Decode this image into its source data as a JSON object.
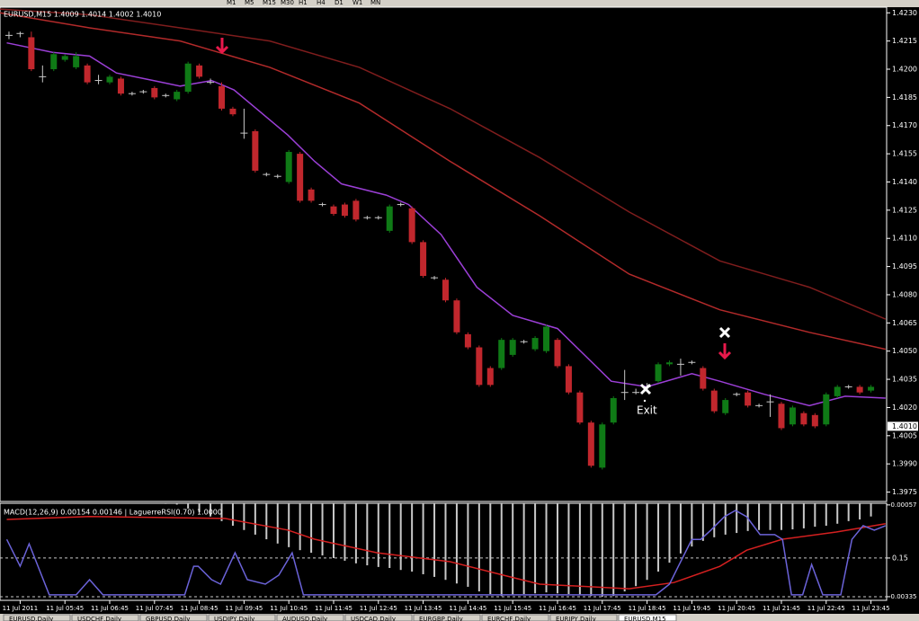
{
  "chart_data": [
    {
      "type": "candlestick",
      "title": "EURUSD,M15  1.4009 1.4014 1.4002 1.4010",
      "categories": [
        null,
        "11 Jul 2011",
        null,
        null,
        null,
        "11 Jul 05:45",
        null,
        null,
        null,
        "11 Jul 06:45",
        null,
        null,
        null,
        "11 Jul 07:45",
        null,
        null,
        null,
        "11 Jul 08:45",
        null,
        null,
        null,
        "11 Jul 09:45",
        null,
        null,
        null,
        "11 Jul 10:45",
        null,
        null,
        null,
        "11 Jul 11:45",
        null,
        null,
        null,
        "11 Jul 12:45",
        null,
        null,
        null,
        "11 Jul 13:45",
        null,
        null,
        null,
        "11 Jul 14:45",
        null,
        null,
        null,
        "11 Jul 15:45",
        null,
        null,
        null,
        "11 Jul 16:45",
        null,
        null,
        null,
        "11 Jul 17:45",
        null,
        null,
        null,
        "11 Jul 18:45",
        null,
        null,
        null,
        "11 Jul 19:45",
        null,
        null,
        null,
        "11 Jul 20:45",
        null,
        null,
        null,
        "11 Jul 21:45",
        null,
        null,
        null,
        "11 Jul 22:45",
        null,
        null,
        null,
        "11 Jul 23:45"
      ],
      "open": [
        1.4218,
        1.4219,
        1.4217,
        1.4196,
        1.42,
        1.4205,
        1.4201,
        1.4202,
        1.4194,
        1.4193,
        1.4195,
        1.4187,
        1.4188,
        1.419,
        1.4186,
        1.4184,
        1.4188,
        1.4202,
        1.4193,
        1.4191,
        1.4179,
        1.4166,
        1.4167,
        1.4144,
        1.4143,
        1.414,
        1.4155,
        1.4136,
        1.4128,
        1.4127,
        1.4128,
        1.413,
        1.4121,
        1.4121,
        1.4114,
        1.4128,
        1.4126,
        1.4108,
        1.4089,
        1.4088,
        1.4077,
        1.4059,
        1.4052,
        1.4041,
        1.4041,
        1.4048,
        1.4055,
        1.4051,
        1.405,
        1.4056,
        1.4042,
        1.4028,
        1.4012,
        1.3988,
        1.4012,
        1.4028,
        1.4028,
        1.4031,
        1.4034,
        1.4043,
        1.4043,
        1.4044,
        1.4041,
        1.4029,
        1.4017,
        1.4027,
        1.4028,
        1.4021,
        1.4023,
        1.4022,
        1.4011,
        1.4017,
        1.4016,
        1.4011,
        1.4026,
        1.4031,
        1.4031,
        1.4029
      ],
      "high": [
        1.422,
        1.422,
        1.422,
        1.4202,
        1.4209,
        1.4208,
        1.4209,
        1.4203,
        1.4197,
        1.4197,
        1.4196,
        1.4188,
        1.4189,
        1.4191,
        1.4187,
        1.4189,
        1.4204,
        1.4203,
        1.4195,
        1.4193,
        1.418,
        1.4179,
        1.4168,
        1.4145,
        1.4144,
        1.4157,
        1.4156,
        1.4137,
        1.4129,
        1.4128,
        1.4129,
        1.4131,
        1.4122,
        1.4122,
        1.4128,
        1.4129,
        1.4127,
        1.4109,
        1.409,
        1.4089,
        1.4078,
        1.406,
        1.4053,
        1.4042,
        1.4057,
        1.4057,
        1.4056,
        1.4058,
        1.4064,
        1.4057,
        1.4043,
        1.4029,
        1.4013,
        1.4012,
        1.4026,
        1.404,
        1.403,
        1.4033,
        1.4044,
        1.4045,
        1.4046,
        1.4045,
        1.4042,
        1.403,
        1.4025,
        1.4028,
        1.4029,
        1.4022,
        1.4027,
        1.4023,
        1.4021,
        1.4018,
        1.4017,
        1.4028,
        1.4032,
        1.4032,
        1.4032,
        1.4032
      ],
      "low": [
        1.4216,
        1.4217,
        1.4199,
        1.4193,
        1.4199,
        1.4204,
        1.42,
        1.4192,
        1.4192,
        1.4192,
        1.4186,
        1.4186,
        1.4187,
        1.4184,
        1.4185,
        1.4183,
        1.4187,
        1.4195,
        1.4192,
        1.4178,
        1.4175,
        1.4163,
        1.4145,
        1.4143,
        1.4142,
        1.4139,
        1.4129,
        1.4129,
        1.4127,
        1.4122,
        1.4121,
        1.4119,
        1.412,
        1.412,
        1.4113,
        1.4127,
        1.4107,
        1.4089,
        1.4088,
        1.4076,
        1.4059,
        1.4051,
        1.4031,
        1.4031,
        1.404,
        1.4047,
        1.4054,
        1.405,
        1.4049,
        1.4041,
        1.4027,
        1.4011,
        1.3988,
        1.3987,
        1.4011,
        1.4024,
        1.4027,
        1.403,
        1.4033,
        1.4042,
        1.4037,
        1.4043,
        1.4029,
        1.4017,
        1.4016,
        1.4026,
        1.402,
        1.402,
        1.4015,
        1.4008,
        1.401,
        1.401,
        1.4009,
        1.401,
        1.4025,
        1.403,
        1.4027,
        1.4028
      ],
      "close": [
        1.4218,
        1.4219,
        1.42,
        1.4196,
        1.4208,
        1.4207,
        1.4207,
        1.4193,
        1.4194,
        1.4196,
        1.4187,
        1.4187,
        1.4188,
        1.4185,
        1.4186,
        1.4188,
        1.4203,
        1.4196,
        1.4193,
        1.4179,
        1.4176,
        1.4166,
        1.4146,
        1.4144,
        1.4143,
        1.4156,
        1.413,
        1.413,
        1.4128,
        1.4123,
        1.4122,
        1.412,
        1.4121,
        1.4121,
        1.4127,
        1.4128,
        1.4108,
        1.409,
        1.4089,
        1.4077,
        1.406,
        1.4052,
        1.4032,
        1.4032,
        1.4056,
        1.4056,
        1.4055,
        1.4057,
        1.4063,
        1.4042,
        1.4028,
        1.4012,
        1.3989,
        1.4011,
        1.4025,
        1.4028,
        1.4028,
        1.4031,
        1.4043,
        1.4044,
        1.4043,
        1.4044,
        1.403,
        1.4018,
        1.4024,
        1.4027,
        1.4021,
        1.4021,
        1.4023,
        1.4009,
        1.402,
        1.4011,
        1.401,
        1.4027,
        1.4031,
        1.4031,
        1.4028,
        1.4031
      ],
      "up_color": "#0f7a16",
      "down_color": "#c1272d",
      "doji_color": "#c8c8c8",
      "lines": [
        {
          "color": "#7f1d1d",
          "x": [
            -0.8,
            7.2,
            15.3,
            23.3,
            31.3,
            39.4,
            47.4,
            55.4,
            63.5,
            71.5,
            78.3
          ],
          "values": [
            1.4232,
            1.4229,
            1.4222,
            1.4215,
            1.4201,
            1.4179,
            1.4153,
            1.4124,
            1.4098,
            1.4084,
            1.4067
          ]
        },
        {
          "color": "#b22a2a",
          "x": [
            -0.8,
            7.2,
            15.3,
            19.3,
            23.3,
            31.3,
            39.4,
            47.4,
            55.4,
            63.5,
            71.5,
            78.3
          ],
          "values": [
            1.423,
            1.4222,
            1.4215,
            1.4208,
            1.4201,
            1.4182,
            1.4151,
            1.4122,
            1.4091,
            1.4072,
            1.406,
            1.4051
          ]
        },
        {
          "color": "#9b3fd6",
          "x": [
            -0.2,
            3.9,
            7.2,
            9.6,
            12.9,
            15.3,
            18.1,
            20.1,
            22.5,
            24.9,
            27.3,
            29.7,
            33.7,
            35.7,
            38.6,
            41.8,
            45,
            49,
            51.4,
            53.8,
            57,
            61,
            63.5,
            67.5,
            71.5,
            74.7,
            78.3
          ],
          "values": [
            1.4214,
            1.4209,
            1.4207,
            1.4198,
            1.4194,
            1.4191,
            1.4194,
            1.4189,
            1.4177,
            1.4165,
            1.4151,
            1.4139,
            1.4133,
            1.4128,
            1.4112,
            1.4084,
            1.4069,
            1.4062,
            1.4048,
            1.4034,
            1.4031,
            1.4038,
            1.4034,
            1.4027,
            1.4021,
            1.4026,
            1.4025
          ]
        }
      ],
      "xlim": [
        -0.8,
        78.4
      ],
      "ylim": [
        1.397,
        1.4233
      ],
      "yticks": [
        {
          "value": 1.423,
          "label": "1.4230"
        },
        {
          "value": 1.4215,
          "label": "1.4215"
        },
        {
          "value": 1.42,
          "label": "1.4200"
        },
        {
          "value": 1.4185,
          "label": "1.4185"
        },
        {
          "value": 1.417,
          "label": "1.4170"
        },
        {
          "value": 1.4155,
          "label": "1.4155"
        },
        {
          "value": 1.414,
          "label": "1.4140"
        },
        {
          "value": 1.4125,
          "label": "1.4125"
        },
        {
          "value": 1.411,
          "label": "1.4110"
        },
        {
          "value": 1.4095,
          "label": "1.4095"
        },
        {
          "value": 1.408,
          "label": "1.4080"
        },
        {
          "value": 1.4065,
          "label": "1.4065"
        },
        {
          "value": 1.405,
          "label": "1.4050"
        },
        {
          "value": 1.4035,
          "label": "1.4035"
        },
        {
          "value": 1.402,
          "label": "1.4020"
        },
        {
          "value": 1.4005,
          "label": "1.4005"
        },
        {
          "value": 1.399,
          "label": "1.3990"
        },
        {
          "value": 1.3975,
          "label": "1.3975"
        }
      ],
      "last_price": {
        "value": 1.401,
        "label": "1.4010"
      },
      "annotation": "Exit"
    },
    {
      "type": "bar",
      "title": "MACD(12,26,9) 0.00154 0.00146 | LaguerreRSI(0.70) 1.0000",
      "xlim": [
        -0.8,
        78.4
      ],
      "ylim": [
        -0.00346,
        -0.00052
      ],
      "yticks": [
        -0.00057,
        -0.00335
      ],
      "y2lim": [
        -0.02,
        0.37
      ],
      "y2ticks": [
        0.15
      ],
      "series": [
        {
          "color": "#c8c8c8",
          "values": [
            -0.0003,
            -0.0003,
            -0.00032,
            -0.00035,
            -0.00036,
            -0.00038,
            -0.0004,
            -0.00042,
            -0.00044,
            -0.00045,
            -0.00047,
            -0.00049,
            -0.0005,
            -0.00052,
            -0.00054,
            -0.00056,
            -0.00068,
            -0.00079,
            -0.00092,
            -0.00106,
            -0.0012,
            -0.00133,
            -0.00147,
            -0.00161,
            -0.00174,
            -0.00185,
            -0.00194,
            -0.00202,
            -0.0021,
            -0.00218,
            -0.00226,
            -0.00234,
            -0.0024,
            -0.00245,
            -0.00248,
            -0.00254,
            -0.00259,
            -0.00267,
            -0.00275,
            -0.00284,
            -0.00295,
            -0.00305,
            -0.00319,
            -0.00327,
            -0.00333,
            -0.0033,
            -0.00327,
            -0.00325,
            -0.00322,
            -0.00325,
            -0.00327,
            -0.0033,
            -0.00333,
            -0.00335,
            -0.00333,
            -0.00319,
            -0.00303,
            -0.00284,
            -0.00259,
            -0.00232,
            -0.00204,
            -0.00183,
            -0.00166,
            -0.00155,
            -0.00147,
            -0.00142,
            -0.00136,
            -0.00133,
            -0.00133,
            -0.00133,
            -0.00131,
            -0.00128,
            -0.00123,
            -0.0012,
            -0.00114,
            -0.00106,
            -0.00101,
            -0.00092
          ]
        },
        {
          "type": "line",
          "color": "#d42020",
          "x": [
            -0.2,
            7.2,
            19.3,
            24.9,
            27.3,
            32.9,
            39.4,
            44.2,
            47.4,
            55.4,
            59.4,
            63.5,
            65.9,
            69.1,
            73.9,
            78.3
          ],
          "values": [
            -0.00101,
            -0.00092,
            -0.00098,
            -0.00133,
            -0.00161,
            -0.00202,
            -0.00229,
            -0.0027,
            -0.00297,
            -0.00311,
            -0.00292,
            -0.00243,
            -0.00194,
            -0.00161,
            -0.00139,
            -0.00114
          ]
        },
        {
          "type": "line",
          "axis": "y2",
          "color": "#6b63d9",
          "x": [
            -0.2,
            1,
            1.8,
            3.6,
            6,
            7.2,
            8.4,
            15.7,
            16.5,
            16.9,
            18.1,
            18.9,
            20.2,
            21.3,
            22.9,
            24.1,
            25.3,
            26.3,
            57.8,
            59,
            59.8,
            61,
            61.8,
            62.7,
            63.9,
            64.9,
            65.9,
            67.1,
            68.4,
            69.1,
            69.9,
            70.9,
            71.7,
            72.7,
            74.3,
            75.3,
            76.3,
            77.3,
            78.3
          ],
          "values": [
            0.225,
            0.117,
            0.207,
            0.002,
            0.002,
            0.063,
            0.002,
            0.002,
            0.117,
            0.117,
            0.063,
            0.045,
            0.171,
            0.063,
            0.045,
            0.081,
            0.171,
            0.002,
            0.002,
            0.045,
            0.117,
            0.225,
            0.225,
            0.262,
            0.316,
            0.341,
            0.316,
            0.244,
            0.244,
            0.225,
            0.002,
            0.002,
            0.124,
            0.002,
            0.002,
            0.225,
            0.28,
            0.262,
            0.28
          ]
        }
      ]
    }
  ],
  "toolbar": {
    "timeframes": [
      "M1",
      "M5",
      "M15",
      "M30",
      "H1",
      "H4",
      "D1",
      "W1",
      "MN"
    ]
  },
  "tabs": [
    "EURUSD,Daily",
    "USDCHF,Daily",
    "GBPUSD,Daily",
    "USDJPY,Daily",
    "AUDUSD,Daily",
    "USDCAD,Daily",
    "EURGBP,Daily",
    "EURCHF,Daily",
    "EURJPY,Daily",
    "EURUSD,M15"
  ]
}
